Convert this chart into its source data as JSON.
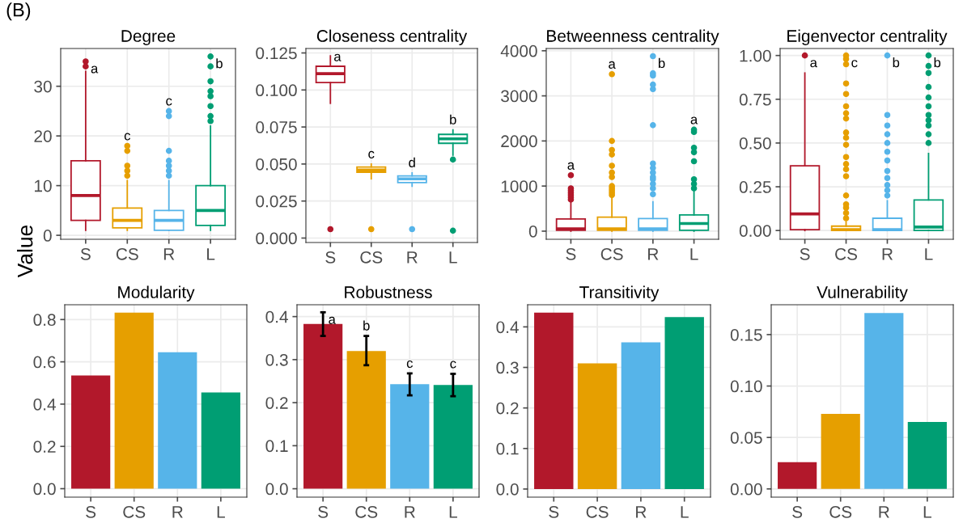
{
  "chart_data": [
    {
      "type": "box",
      "title": "Degree",
      "ylabel": "Value",
      "categories": [
        "S",
        "CS",
        "R",
        "L"
      ],
      "colors": [
        "#b2182b",
        "#e69f00",
        "#56b4e9",
        "#009e73"
      ],
      "ylim": [
        -0.8,
        37.6
      ],
      "yticks": [
        0,
        10,
        20,
        30
      ],
      "grid": true,
      "boxes": [
        {
          "low": 1,
          "q1": 3,
          "median": 8,
          "q3": 15,
          "high": 33,
          "outliers": [
            34,
            35
          ]
        },
        {
          "low": 1,
          "q1": 1.5,
          "median": 3,
          "q3": 5.5,
          "high": 11,
          "outliers": [
            12,
            13,
            14,
            17,
            18
          ]
        },
        {
          "low": 1,
          "q1": 1,
          "median": 3,
          "q3": 5,
          "high": 11,
          "outliers": [
            12,
            13,
            14,
            15,
            17,
            24,
            25
          ]
        },
        {
          "low": 1,
          "q1": 2,
          "median": 5,
          "q3": 10,
          "high": 22,
          "outliers": [
            23,
            24,
            26,
            28,
            29,
            31,
            34,
            36
          ]
        }
      ],
      "annotations": [
        "(B)",
        "a",
        "c",
        "c",
        "b"
      ]
    },
    {
      "type": "box",
      "title": "Closeness centrality",
      "categories": [
        "S",
        "CS",
        "R",
        "L"
      ],
      "colors": [
        "#b2182b",
        "#e69f00",
        "#56b4e9",
        "#009e73"
      ],
      "ylim": [
        -0.003,
        0.128
      ],
      "yticks": [
        {
          "value": 0,
          "label": "0.000"
        },
        {
          "value": 0.025,
          "label": "0.025"
        },
        {
          "value": 0.05,
          "label": "0.050"
        },
        {
          "value": 0.075,
          "label": "0.075"
        },
        {
          "value": 0.1,
          "label": "0.100"
        },
        {
          "value": 0.125,
          "label": "0.125"
        }
      ],
      "grid": true,
      "boxes": [
        {
          "low": 0.091,
          "q1": 0.105,
          "median": 0.111,
          "q3": 0.116,
          "high": 0.123,
          "outliers": [
            0.006
          ]
        },
        {
          "low": 0.04,
          "q1": 0.0445,
          "median": 0.046,
          "q3": 0.048,
          "high": 0.05,
          "outliers": [
            0.006
          ]
        },
        {
          "low": 0.035,
          "q1": 0.0375,
          "median": 0.04,
          "q3": 0.042,
          "high": 0.044,
          "outliers": [
            0.006
          ]
        },
        {
          "low": 0.056,
          "q1": 0.064,
          "median": 0.067,
          "q3": 0.07,
          "high": 0.073,
          "outliers": [
            0.053,
            0.005
          ]
        }
      ],
      "annotations": [
        "a",
        "c",
        "d",
        "b"
      ]
    },
    {
      "type": "box",
      "title": "Betweenness centrality",
      "categories": [
        "S",
        "CS",
        "R",
        "L"
      ],
      "colors": [
        "#b2182b",
        "#e69f00",
        "#56b4e9",
        "#009e73"
      ],
      "ylim": [
        -180,
        4050
      ],
      "yticks": [
        0,
        1000,
        2000,
        3000,
        4000
      ],
      "grid": true,
      "boxes": [
        {
          "low": 0,
          "q1": 20,
          "median": 50,
          "q3": 270,
          "high": 650,
          "outliers": [
            700,
            750,
            800,
            850,
            900,
            950,
            1240
          ]
        },
        {
          "low": 0,
          "q1": 20,
          "median": 50,
          "q3": 310,
          "high": 750,
          "outliers": [
            800,
            850,
            900,
            950,
            1000,
            1200,
            1300,
            1450,
            1700,
            1800,
            2000,
            3480
          ]
        },
        {
          "low": 0,
          "q1": 20,
          "median": 50,
          "q3": 280,
          "high": 650,
          "outliers": [
            820,
            950,
            1050,
            1150,
            1200,
            1300,
            1400,
            1500,
            2350,
            3150,
            3250,
            3450,
            3500,
            3880
          ]
        },
        {
          "low": 0,
          "q1": 20,
          "median": 170,
          "q3": 360,
          "high": 900,
          "outliers": [
            950,
            1050,
            1150,
            1550,
            1750,
            1850,
            2200,
            2250
          ]
        }
      ],
      "annotations": [
        "a",
        "a",
        "b",
        "a"
      ]
    },
    {
      "type": "box",
      "title": "Eigenvector centrality",
      "categories": [
        "S",
        "CS",
        "R",
        "L"
      ],
      "colors": [
        "#b2182b",
        "#e69f00",
        "#56b4e9",
        "#009e73"
      ],
      "ylim": [
        -0.05,
        1.04
      ],
      "yticks": [
        {
          "value": 0,
          "label": "0.00"
        },
        {
          "value": 0.25,
          "label": "0.25"
        },
        {
          "value": 0.5,
          "label": "0.50"
        },
        {
          "value": 0.75,
          "label": "0.75"
        },
        {
          "value": 1,
          "label": "1.00"
        }
      ],
      "grid": true,
      "boxes": [
        {
          "low": 0,
          "q1": 0.005,
          "median": 0.095,
          "q3": 0.37,
          "high": 0.9,
          "outliers": [
            1.0
          ]
        },
        {
          "low": 0,
          "q1": 0,
          "median": 0.005,
          "q3": 0.025,
          "high": 0.05,
          "outliers": [
            0.07,
            0.1,
            0.13,
            0.15,
            0.2,
            0.31,
            0.35,
            0.38,
            0.42,
            0.49,
            0.53,
            0.56,
            0.64,
            0.67,
            0.71,
            0.78,
            0.84,
            0.95,
            0.98,
            1.0
          ]
        },
        {
          "low": 0,
          "q1": 0,
          "median": 0.005,
          "q3": 0.07,
          "high": 0.17,
          "outliers": [
            0.2,
            0.23,
            0.26,
            0.3,
            0.34,
            0.4,
            0.45,
            0.5,
            0.55,
            0.6,
            0.66,
            1.0
          ]
        },
        {
          "low": 0,
          "q1": 0,
          "median": 0.02,
          "q3": 0.175,
          "high": 0.44,
          "outliers": [
            0.5,
            0.55,
            0.6,
            0.63,
            0.66,
            0.71,
            0.76,
            0.82,
            0.9,
            0.94,
            1.0
          ]
        }
      ],
      "annotations": [
        "a",
        "c",
        "b",
        "b"
      ]
    },
    {
      "type": "bar",
      "title": "Modularity",
      "categories": [
        "S",
        "CS",
        "R",
        "L"
      ],
      "colors": [
        "#b2182b",
        "#e69f00",
        "#56b4e9",
        "#009e73"
      ],
      "values": [
        0.535,
        0.833,
        0.645,
        0.455
      ],
      "ylim": [
        -0.04,
        0.87
      ],
      "yticks": [
        {
          "value": 0,
          "label": "0.0"
        },
        {
          "value": 0.2,
          "label": "0.2"
        },
        {
          "value": 0.4,
          "label": "0.4"
        },
        {
          "value": 0.6,
          "label": "0.6"
        },
        {
          "value": 0.8,
          "label": "0.8"
        }
      ],
      "grid": true
    },
    {
      "type": "bar",
      "title": "Robustness",
      "categories": [
        "S",
        "CS",
        "R",
        "L"
      ],
      "colors": [
        "#b2182b",
        "#e69f00",
        "#56b4e9",
        "#009e73"
      ],
      "values": [
        0.383,
        0.32,
        0.243,
        0.241
      ],
      "errors": [
        [
          0.355,
          0.41
        ],
        [
          0.287,
          0.355
        ],
        [
          0.217,
          0.268
        ],
        [
          0.215,
          0.267
        ]
      ],
      "ylim": [
        -0.0195,
        0.4275
      ],
      "yticks": [
        {
          "value": 0,
          "label": "0.0"
        },
        {
          "value": 0.1,
          "label": "0.1"
        },
        {
          "value": 0.2,
          "label": "0.2"
        },
        {
          "value": 0.3,
          "label": "0.3"
        },
        {
          "value": 0.4,
          "label": "0.4"
        }
      ],
      "grid": true,
      "annotations": [
        "a",
        "b",
        "c",
        "c"
      ]
    },
    {
      "type": "bar",
      "title": "Transitivity",
      "categories": [
        "S",
        "CS",
        "R",
        "L"
      ],
      "colors": [
        "#b2182b",
        "#e69f00",
        "#56b4e9",
        "#009e73"
      ],
      "values": [
        0.435,
        0.31,
        0.362,
        0.424
      ],
      "ylim": [
        -0.02,
        0.4546
      ],
      "yticks": [
        {
          "value": 0,
          "label": "0.0"
        },
        {
          "value": 0.1,
          "label": "0.1"
        },
        {
          "value": 0.2,
          "label": "0.2"
        },
        {
          "value": 0.3,
          "label": "0.3"
        },
        {
          "value": 0.4,
          "label": "0.4"
        }
      ],
      "grid": true
    },
    {
      "type": "bar",
      "title": "Vulnerability",
      "categories": [
        "S",
        "CS",
        "R",
        "L"
      ],
      "colors": [
        "#b2182b",
        "#e69f00",
        "#56b4e9",
        "#009e73"
      ],
      "values": [
        0.026,
        0.073,
        0.171,
        0.065
      ],
      "ylim": [
        -0.008,
        0.179
      ],
      "yticks": [
        {
          "value": 0,
          "label": "0.00"
        },
        {
          "value": 0.05,
          "label": "0.05"
        },
        {
          "value": 0.1,
          "label": "0.10"
        },
        {
          "value": 0.15,
          "label": "0.15"
        }
      ],
      "grid": true
    }
  ]
}
